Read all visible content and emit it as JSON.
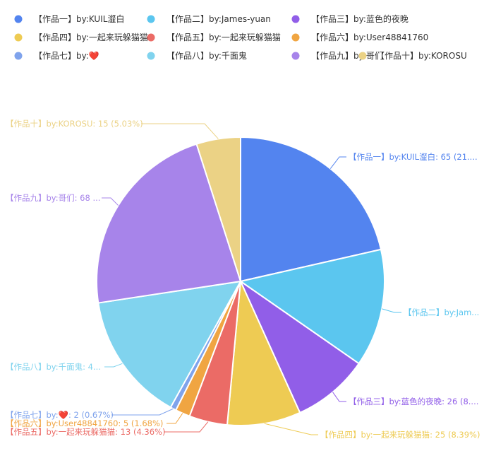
{
  "chart_data": {
    "type": "pie",
    "legend_position": "top",
    "label_format": "{name}: {value} ({percent})",
    "slices": [
      {
        "name": "【作品一】by:KUIL瀣白",
        "label_visible": "【作品一】by:KUIL瀣白: 65 (21....",
        "value": 65,
        "percent": "21.81%",
        "color": "#5384ef"
      },
      {
        "name": "【作品二】by:James-yuan",
        "label_visible": "【作品二】by:Jam...",
        "value": 40,
        "percent": "13.42%",
        "color": "#5bc6ef"
      },
      {
        "name": "【作品三】by:蓝色的夜晚",
        "label_visible": "【作品三】by:蓝色的夜晚: 26 (8....",
        "value": 26,
        "percent": "8.72%",
        "color": "#915ee8"
      },
      {
        "name": "【作品四】by:一起来玩躲猫猫",
        "label_visible": "【作品四】by:一起来玩躲猫猫: 25 (8.39%)",
        "value": 25,
        "percent": "8.39%",
        "color": "#eecb53"
      },
      {
        "name": "【作品五】by:一起来玩躲猫猫",
        "label_visible": "【作品五】by:一起来玩躲猫猫: 13 (4.36%)",
        "value": 13,
        "percent": "4.36%",
        "color": "#eb6b66"
      },
      {
        "name": "【作品六】by:User48841760",
        "label_visible": "【作品六】by:User48841760: 5 (1.68%)",
        "value": 5,
        "percent": "1.68%",
        "color": "#f0a542"
      },
      {
        "name": "【作品七】by:❤️",
        "label_visible": "【作品七】by:❤️: 2 (0.67%)",
        "value": 2,
        "percent": "0.67%",
        "color": "#7fa3ec"
      },
      {
        "name": "【作品八】by:千面鬼",
        "label_visible": "【作品八】by:千面鬼: 4...",
        "value": 44,
        "percent": "14.77%",
        "color": "#80d3ee"
      },
      {
        "name": "【作品九】by:哥们",
        "label_visible": "【作品九】by:哥们: 68 ...",
        "value": 68,
        "percent": "22.82%",
        "color": "#a784ea"
      },
      {
        "name": "【作品十】by:KOROSU",
        "label_visible": "【作品十】by:KOROSU: 15 (5.03%)",
        "value": 15,
        "percent": "5.03%",
        "color": "#ebd285"
      }
    ]
  }
}
